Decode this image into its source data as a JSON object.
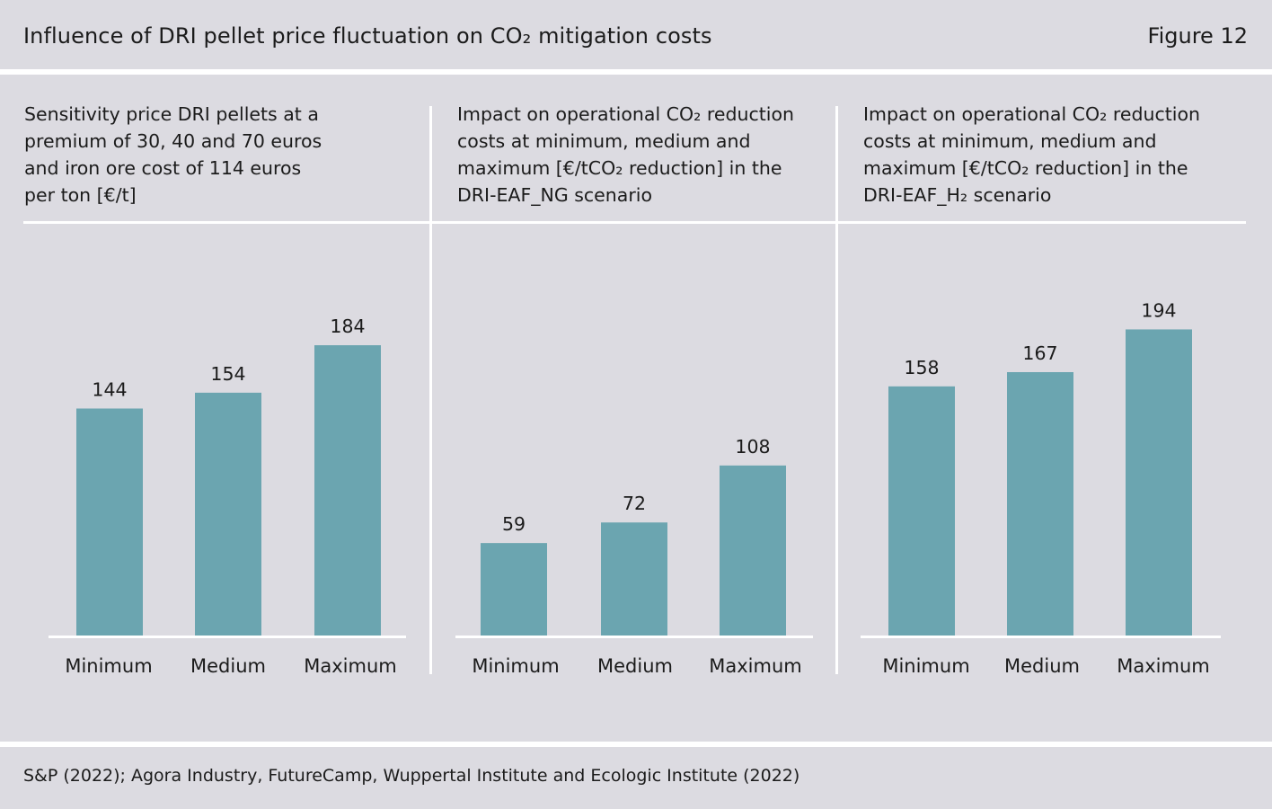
{
  "figure": {
    "title": "Influence of DRI pellet price fluctuation on CO₂ mitigation costs",
    "number": "Figure 12",
    "source": "S&P (2022); Agora Industry, FutureCamp, Wuppertal Institute and Ecologic Institute (2022)"
  },
  "colors": {
    "background": "#dcdbe1",
    "bar": "#6ba5b0",
    "rule": "#ffffff",
    "text": "#1b1b1b"
  },
  "chart_data": [
    {
      "type": "bar",
      "title": "Sensitivity price DRI pellets at a\npremium of 30, 40 and 70 euros\nand iron ore cost of 114 euros\nper ton [€/t]",
      "categories": [
        "Minimum",
        "Medium",
        "Maximum"
      ],
      "values": [
        144,
        154,
        184
      ],
      "data_labels": [
        "144",
        "154",
        "184"
      ],
      "ylim": [
        0,
        250
      ],
      "grid": false,
      "legend": "none"
    },
    {
      "type": "bar",
      "title": "Impact on operational CO₂ reduction\ncosts at minimum, medium and\nmaximum [€/tCO₂ reduction] in the\nDRI-EAF_NG scenario",
      "categories": [
        "Minimum",
        "Medium",
        "Maximum"
      ],
      "values": [
        59,
        72,
        108
      ],
      "data_labels": [
        "59",
        "72",
        "108"
      ],
      "ylim": [
        0,
        250
      ],
      "grid": false,
      "legend": "none"
    },
    {
      "type": "bar",
      "title": "Impact on operational CO₂ reduction\ncosts at minimum, medium and\nmaximum [€/tCO₂ reduction] in the\nDRI-EAF_H₂ scenario",
      "categories": [
        "Minimum",
        "Medium",
        "Maximum"
      ],
      "values": [
        158,
        167,
        194
      ],
      "data_labels": [
        "158",
        "167",
        "194"
      ],
      "ylim": [
        0,
        250
      ],
      "grid": false,
      "legend": "none"
    }
  ]
}
